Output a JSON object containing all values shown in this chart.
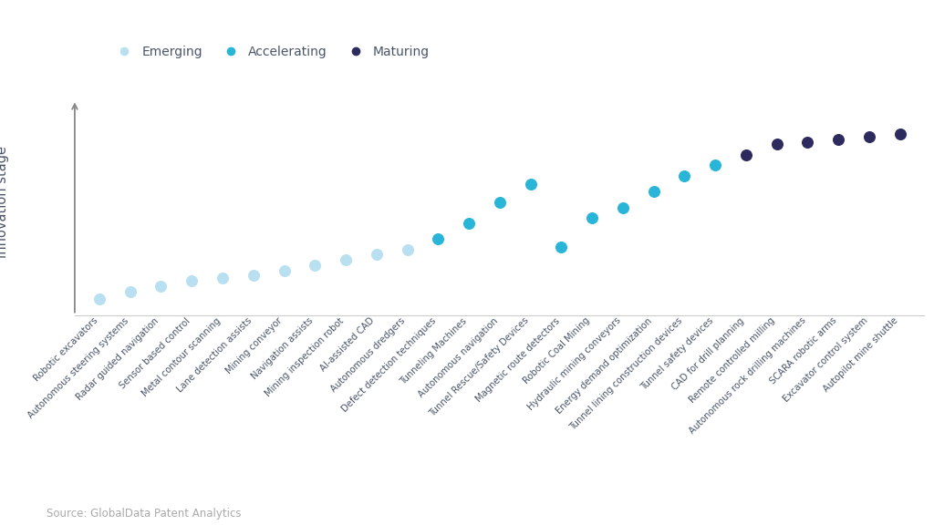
{
  "items": [
    {
      "label": "Robotic excavators",
      "y": 1.0,
      "stage": "Emerging"
    },
    {
      "label": "Autonomous steering systems",
      "y": 1.15,
      "stage": "Emerging"
    },
    {
      "label": "Radar guided navigation",
      "y": 1.25,
      "stage": "Emerging"
    },
    {
      "label": "Sensor based control",
      "y": 1.35,
      "stage": "Emerging"
    },
    {
      "label": "Metal contour scanning",
      "y": 1.4,
      "stage": "Emerging"
    },
    {
      "label": "Lane detection assists",
      "y": 1.45,
      "stage": "Emerging"
    },
    {
      "label": "Mining conveyor",
      "y": 1.55,
      "stage": "Emerging"
    },
    {
      "label": "Navigation assists",
      "y": 1.65,
      "stage": "Emerging"
    },
    {
      "label": "Mining inspection robot",
      "y": 1.75,
      "stage": "Emerging"
    },
    {
      "label": "AI-assisted CAD",
      "y": 1.85,
      "stage": "Emerging"
    },
    {
      "label": "Autonomous dredgers",
      "y": 1.95,
      "stage": "Emerging"
    },
    {
      "label": "Defect detection techniques",
      "y": 2.15,
      "stage": "Accelerating"
    },
    {
      "label": "Tunneling Machines",
      "y": 2.45,
      "stage": "Accelerating"
    },
    {
      "label": "Autonomous navigation",
      "y": 2.85,
      "stage": "Accelerating"
    },
    {
      "label": "Tunnel Rescue/Safety Devices",
      "y": 3.2,
      "stage": "Accelerating"
    },
    {
      "label": "Magnetic route detectors",
      "y": 2.0,
      "stage": "Accelerating"
    },
    {
      "label": "Robotic Coal Mining",
      "y": 2.55,
      "stage": "Accelerating"
    },
    {
      "label": "Hydraulic mining conveyors",
      "y": 2.75,
      "stage": "Accelerating"
    },
    {
      "label": "Energy demand optimization",
      "y": 3.05,
      "stage": "Accelerating"
    },
    {
      "label": "Tunnel lining construction devices",
      "y": 3.35,
      "stage": "Accelerating"
    },
    {
      "label": "Tunnel safety devices",
      "y": 3.55,
      "stage": "Accelerating"
    },
    {
      "label": "CAD for drill planning",
      "y": 3.75,
      "stage": "Maturing"
    },
    {
      "label": "Remote controlled milling",
      "y": 3.95,
      "stage": "Maturing"
    },
    {
      "label": "Autonomous rock drilling machines",
      "y": 4.0,
      "stage": "Maturing"
    },
    {
      "label": "SCARA robotic arms",
      "y": 4.05,
      "stage": "Maturing"
    },
    {
      "label": "Excavator control system",
      "y": 4.1,
      "stage": "Maturing"
    },
    {
      "label": "Autopilot mine shuttle",
      "y": 4.15,
      "stage": "Maturing"
    }
  ],
  "stage_colors": {
    "Emerging": "#b8e0f0",
    "Accelerating": "#29b5d8",
    "Maturing": "#2d2a5e"
  },
  "ylabel": "Innovation stage",
  "source": "Source: GlobalData Patent Analytics",
  "background_color": "#ffffff",
  "text_color": "#4a5568",
  "label_fontsize": 7.2,
  "ylabel_fontsize": 10.5,
  "legend_fontsize": 10,
  "source_fontsize": 8.5,
  "dot_size": 70
}
